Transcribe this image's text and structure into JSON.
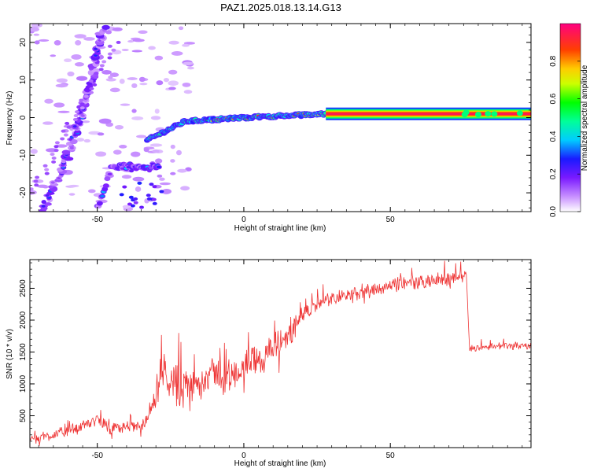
{
  "figure": {
    "title": "PAZ1.2025.018.13.14.G13"
  },
  "chart_data": [
    {
      "type": "heatmap",
      "xlabel": "Height of straight line (km)",
      "ylabel": "Frequency (Hz)",
      "xlim": [
        -73,
        98
      ],
      "ylim": [
        -25,
        25
      ],
      "xticks": [
        -50,
        0,
        50
      ],
      "yticks": [
        -20,
        -10,
        0,
        10,
        20
      ],
      "colorbar": {
        "label": "Normalized spectral amplitude",
        "range": [
          0,
          1
        ],
        "ticks": [
          "0.0",
          "0.2",
          "0.4",
          "0.6",
          "0.8"
        ],
        "colormap": [
          "#ffffff",
          "#9b30ff",
          "#1a1aff",
          "#00ffff",
          "#00ff00",
          "#ffff00",
          "#ff8000",
          "#ff0000",
          "#ff0080"
        ]
      },
      "features": [
        {
          "name": "",
          "x": [
            -70,
            -60,
            -52,
            -48
          ],
          "freq": [
            -27,
            -10,
            10,
            24
          ],
          "amplitude": 0.35
        },
        {
          "name": "",
          "x": [
            -50,
            -45,
            -38,
            -29
          ],
          "freq": [
            -24,
            -13,
            -13,
            -13
          ],
          "amplitude": 0.4
        },
        {
          "name": "",
          "x": [
            -33,
            -20,
            0,
            28,
            98
          ],
          "freq": [
            -6,
            -1,
            0,
            1,
            1
          ],
          "amplitude": 1.0
        }
      ]
    },
    {
      "type": "line",
      "xlabel": "Height of straight line (km)",
      "ylabel": "SNR (10 * v/v)",
      "xlim": [
        -73,
        98
      ],
      "ylim": [
        0,
        2950
      ],
      "xticks": [
        -50,
        0,
        50
      ],
      "yticks": [
        500,
        1000,
        1500,
        2000,
        2500
      ],
      "color": "#ee3333",
      "series": [
        {
          "x": [
            -73,
            -65,
            -55,
            -50,
            -45,
            -35,
            -30,
            -28,
            -25,
            -22,
            -18,
            -14,
            -10,
            -6,
            -2,
            2,
            6,
            10,
            15,
            20,
            25,
            30,
            40,
            50,
            60,
            70,
            76,
            77,
            85,
            98
          ],
          "values": [
            150,
            200,
            320,
            450,
            300,
            330,
            700,
            1200,
            1100,
            900,
            950,
            1100,
            1200,
            1050,
            1200,
            1350,
            1400,
            1550,
            1750,
            2050,
            2250,
            2350,
            2450,
            2550,
            2600,
            2650,
            2700,
            1550,
            1600,
            1600
          ]
        }
      ]
    }
  ]
}
